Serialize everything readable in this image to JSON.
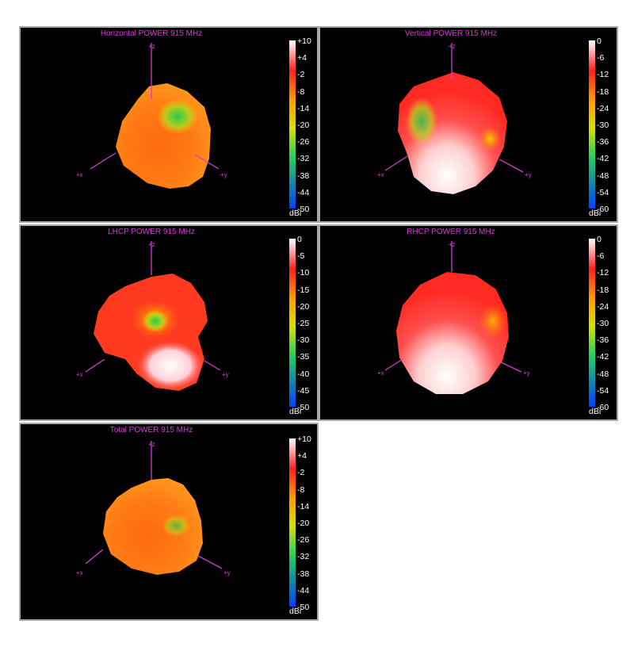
{
  "colors": {
    "axis": "#d23cd2",
    "background": "#000000",
    "frame": "#a8a8a8",
    "scale": [
      "#ffffff",
      "#ff2020",
      "#ff9900",
      "#d8e000",
      "#20d060",
      "#0040ff"
    ]
  },
  "axes": {
    "z": "+z",
    "x": "+x",
    "y": "+y"
  },
  "panels": [
    {
      "title": "Horizontal POWER 915  MHz",
      "unit": "dBi",
      "scale": [
        "+10",
        "+4",
        "-2",
        "-8",
        "-14",
        "-20",
        "-26",
        "-32",
        "-38",
        "-44",
        "-50"
      ]
    },
    {
      "title": "Vertical POWER 915  MHz",
      "unit": "dBi",
      "scale": [
        "0",
        "-6",
        "-12",
        "-18",
        "-24",
        "-30",
        "-36",
        "-42",
        "-48",
        "-54",
        "-60"
      ]
    },
    {
      "title": "LHCP POWER 915  MHz",
      "unit": "dBi",
      "scale": [
        "0",
        "-5",
        "-10",
        "-15",
        "-20",
        "-25",
        "-30",
        "-35",
        "-40",
        "-45",
        "-50"
      ]
    },
    {
      "title": "RHCP POWER 915  MHz",
      "unit": "dBi",
      "scale": [
        "0",
        "-6",
        "-12",
        "-18",
        "-24",
        "-30",
        "-36",
        "-42",
        "-48",
        "-54",
        "-60"
      ]
    },
    {
      "title": "Total POWER 915  MHz",
      "unit": "dBi",
      "scale": [
        "+10",
        "+4",
        "-2",
        "-8",
        "-14",
        "-20",
        "-26",
        "-32",
        "-38",
        "-44",
        "-50"
      ]
    }
  ]
}
